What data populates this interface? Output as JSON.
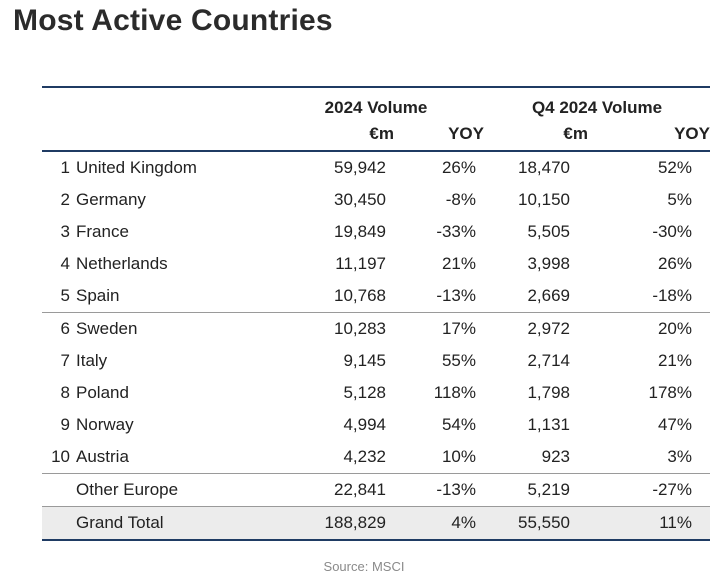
{
  "title": "Most Active Countries",
  "headers": {
    "group_2024": "2024 Volume",
    "group_q4": "Q4 2024 Volume",
    "col_vol": "€m",
    "col_yoy": "YOY",
    "col_qvol": "€m",
    "col_qyoy": "YOY"
  },
  "rows": [
    {
      "rank": "1",
      "country": "United Kingdom",
      "vol": "59,942",
      "yoy": "26%",
      "qvol": "18,470",
      "qyoy": "52%"
    },
    {
      "rank": "2",
      "country": "Germany",
      "vol": "30,450",
      "yoy": "-8%",
      "qvol": "10,150",
      "qyoy": "5%"
    },
    {
      "rank": "3",
      "country": "France",
      "vol": "19,849",
      "yoy": "-33%",
      "qvol": "5,505",
      "qyoy": "-30%"
    },
    {
      "rank": "4",
      "country": "Netherlands",
      "vol": "11,197",
      "yoy": "21%",
      "qvol": "3,998",
      "qyoy": "26%"
    },
    {
      "rank": "5",
      "country": "Spain",
      "vol": "10,768",
      "yoy": "-13%",
      "qvol": "2,669",
      "qyoy": "-18%"
    },
    {
      "rank": "6",
      "country": "Sweden",
      "vol": "10,283",
      "yoy": "17%",
      "qvol": "2,972",
      "qyoy": "20%"
    },
    {
      "rank": "7",
      "country": "Italy",
      "vol": "9,145",
      "yoy": "55%",
      "qvol": "2,714",
      "qyoy": "21%"
    },
    {
      "rank": "8",
      "country": "Poland",
      "vol": "5,128",
      "yoy": "118%",
      "qvol": "1,798",
      "qyoy": "178%"
    },
    {
      "rank": "9",
      "country": "Norway",
      "vol": "4,994",
      "yoy": "54%",
      "qvol": "1,131",
      "qyoy": "47%"
    },
    {
      "rank": "10",
      "country": "Austria",
      "vol": "4,232",
      "yoy": "10%",
      "qvol": "923",
      "qyoy": "3%"
    }
  ],
  "other": {
    "label": "Other Europe",
    "vol": "22,841",
    "yoy": "-13%",
    "qvol": "5,219",
    "qyoy": "-27%"
  },
  "total": {
    "label": "Grand Total",
    "vol": "188,829",
    "yoy": "4%",
    "qvol": "55,550",
    "qyoy": "11%"
  },
  "source": "Source: MSCI",
  "colors": {
    "rule": "#1f3b63",
    "total_bg": "#ececec",
    "source_text": "#8a8a8a"
  }
}
